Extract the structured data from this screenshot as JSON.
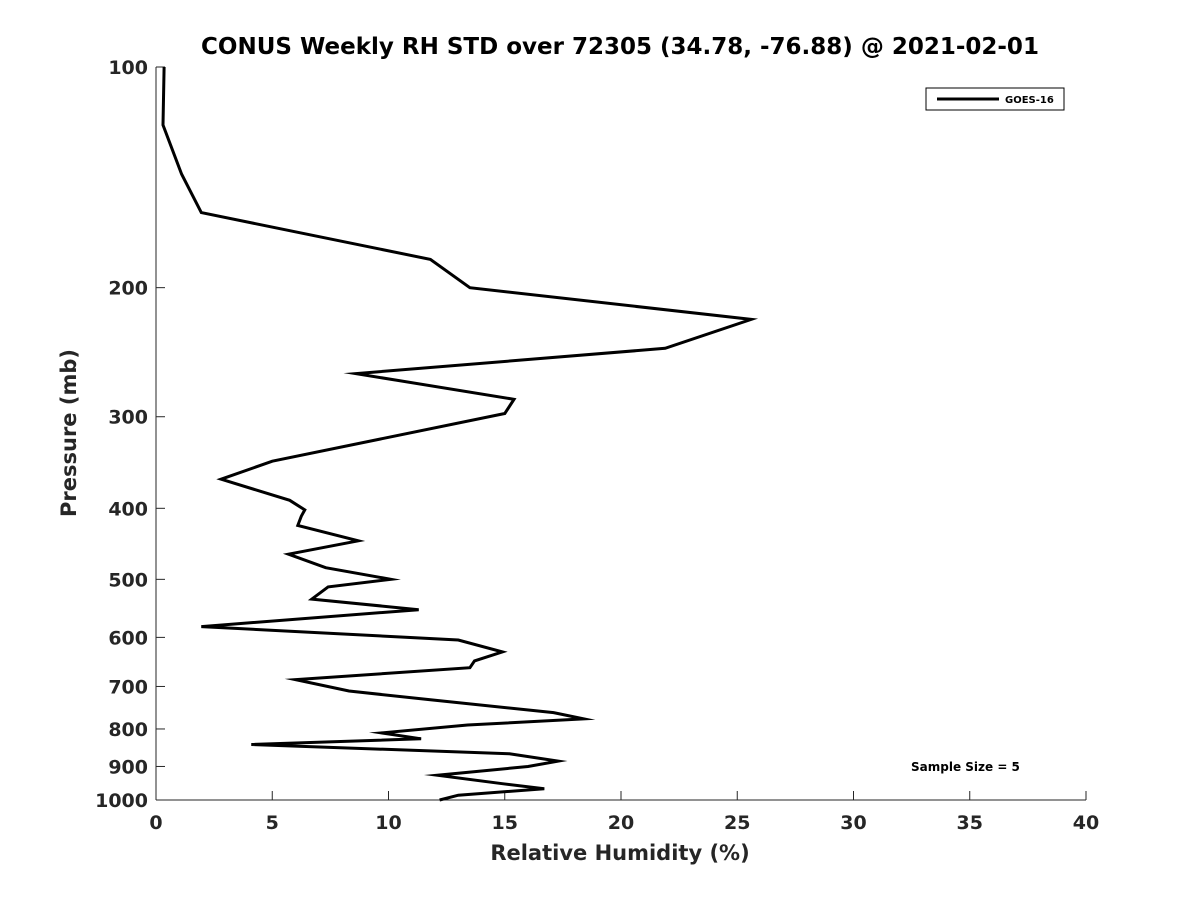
{
  "chart_data": {
    "type": "line",
    "title": "CONUS Weekly RH STD over 72305 (34.78, -76.88) @ 2021-02-01",
    "xlabel": "Relative Humidity (%)",
    "ylabel": "Pressure (mb)",
    "xlim": [
      0,
      40
    ],
    "ylim": [
      100,
      1000
    ],
    "yscale": "log",
    "yreversed": true,
    "x_ticks": [
      0,
      5,
      10,
      15,
      20,
      25,
      30,
      35,
      40
    ],
    "x_tick_labels": [
      "0",
      "5",
      "10",
      "15",
      "20",
      "25",
      "30",
      "35",
      "40"
    ],
    "y_ticks": [
      100,
      200,
      300,
      400,
      500,
      600,
      700,
      800,
      900,
      1000
    ],
    "y_tick_labels": [
      "100",
      "200",
      "300",
      "400",
      "500",
      "600",
      "700",
      "800",
      "900",
      "1000"
    ],
    "grid": false,
    "legend_position": "top-right",
    "annotation": "Sample Size = 5",
    "series": [
      {
        "name": "GOES-16",
        "color": "#000000",
        "points": [
          [
            0.35,
            100
          ],
          [
            0.3,
            120
          ],
          [
            1.1,
            140
          ],
          [
            1.95,
            158
          ],
          [
            11.8,
            183
          ],
          [
            13.5,
            200
          ],
          [
            25.6,
            221
          ],
          [
            21.9,
            242
          ],
          [
            8.6,
            262
          ],
          [
            15.4,
            284
          ],
          [
            15.0,
            297
          ],
          [
            5.0,
            345
          ],
          [
            2.8,
            365
          ],
          [
            5.75,
            390
          ],
          [
            6.4,
            402
          ],
          [
            6.25,
            410
          ],
          [
            6.1,
            422
          ],
          [
            8.7,
            443
          ],
          [
            5.7,
            462
          ],
          [
            7.3,
            482
          ],
          [
            10.1,
            500
          ],
          [
            7.4,
            512
          ],
          [
            6.7,
            532
          ],
          [
            11.3,
            550
          ],
          [
            1.95,
            580
          ],
          [
            13.0,
            605
          ],
          [
            14.9,
            628
          ],
          [
            13.7,
            646
          ],
          [
            13.5,
            660
          ],
          [
            6.0,
            685
          ],
          [
            8.3,
            710
          ],
          [
            11.8,
            730
          ],
          [
            17.1,
            760
          ],
          [
            18.4,
            775
          ],
          [
            13.4,
            790
          ],
          [
            9.7,
            810
          ],
          [
            11.4,
            825
          ],
          [
            4.1,
            840
          ],
          [
            15.2,
            865
          ],
          [
            17.3,
            885
          ],
          [
            16.0,
            900
          ],
          [
            12.1,
            925
          ],
          [
            14.9,
            950
          ],
          [
            16.7,
            965
          ],
          [
            13.0,
            985
          ],
          [
            12.2,
            1000
          ]
        ]
      }
    ]
  }
}
